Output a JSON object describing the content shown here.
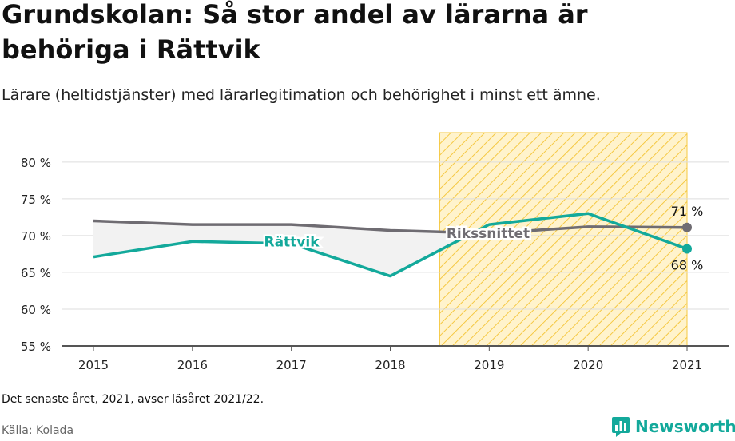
{
  "header": {
    "title": "Grundskolan: Så stor andel av lärarna är behöriga i Rättvik",
    "subtitle": "Lärare (heltidstjänster) med lärarlegitimation och behörighet i minst ett ämne."
  },
  "footer": {
    "note": "Det senaste året, 2021, avser läsåret 2021/22.",
    "source": "Källa: Kolada",
    "brand": "Newsworthy"
  },
  "colors": {
    "rattvik": "#13a99b",
    "riksnittet": "#6f6c72",
    "highlight_fill": "#fff3cc",
    "highlight_stripe": "#f5c842",
    "gap_fill": "#f2f2f2"
  },
  "chart_data": {
    "type": "line",
    "x": [
      2015,
      2016,
      2017,
      2018,
      2019,
      2020,
      2021
    ],
    "series": [
      {
        "name": "Rättvik",
        "values": [
          67.1,
          69.2,
          68.9,
          64.5,
          71.5,
          73.0,
          68.2
        ],
        "end_label": "68 %"
      },
      {
        "name": "Rikssnittet",
        "values": [
          72.0,
          71.5,
          71.5,
          70.7,
          70.3,
          71.2,
          71.1
        ],
        "end_label": "71 %"
      }
    ],
    "ylim": [
      55,
      84
    ],
    "yticks": [
      55,
      60,
      65,
      70,
      75,
      80
    ],
    "ytick_labels": [
      "55 %",
      "60 %",
      "65 %",
      "70 %",
      "75 %",
      "80 %"
    ],
    "xtick_labels": [
      "2015",
      "2016",
      "2017",
      "2018",
      "2019",
      "2020",
      "2021"
    ],
    "highlight_range": [
      2018.5,
      2021
    ],
    "grid": true,
    "xlabel": "",
    "ylabel": ""
  }
}
